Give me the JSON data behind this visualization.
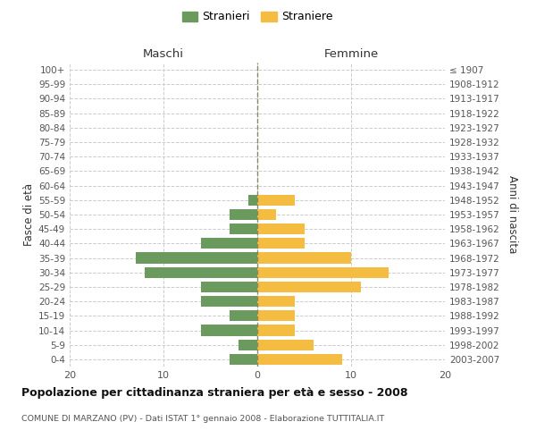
{
  "age_groups": [
    "100+",
    "95-99",
    "90-94",
    "85-89",
    "80-84",
    "75-79",
    "70-74",
    "65-69",
    "60-64",
    "55-59",
    "50-54",
    "45-49",
    "40-44",
    "35-39",
    "30-34",
    "25-29",
    "20-24",
    "15-19",
    "10-14",
    "5-9",
    "0-4"
  ],
  "birth_years": [
    "≤ 1907",
    "1908-1912",
    "1913-1917",
    "1918-1922",
    "1923-1927",
    "1928-1932",
    "1933-1937",
    "1938-1942",
    "1943-1947",
    "1948-1952",
    "1953-1957",
    "1958-1962",
    "1963-1967",
    "1968-1972",
    "1973-1977",
    "1978-1982",
    "1983-1987",
    "1988-1992",
    "1993-1997",
    "1998-2002",
    "2003-2007"
  ],
  "males": [
    0,
    0,
    0,
    0,
    0,
    0,
    0,
    0,
    0,
    1,
    3,
    3,
    6,
    13,
    12,
    6,
    6,
    3,
    6,
    2,
    3
  ],
  "females": [
    0,
    0,
    0,
    0,
    0,
    0,
    0,
    0,
    0,
    4,
    2,
    5,
    5,
    10,
    14,
    11,
    4,
    4,
    4,
    6,
    9
  ],
  "male_color": "#6a9a5e",
  "female_color": "#f5bc42",
  "xlim": 20,
  "title": "Popolazione per cittadinanza straniera per età e sesso - 2008",
  "subtitle": "COMUNE DI MARZANO (PV) - Dati ISTAT 1° gennaio 2008 - Elaborazione TUTTITALIA.IT",
  "left_label": "Maschi",
  "right_label": "Femmine",
  "ylabel_left": "Fasce di età",
  "ylabel_right": "Anni di nascita",
  "legend_male": "Stranieri",
  "legend_female": "Straniere",
  "bg_color": "#ffffff",
  "grid_color": "#cccccc",
  "bar_height": 0.75
}
